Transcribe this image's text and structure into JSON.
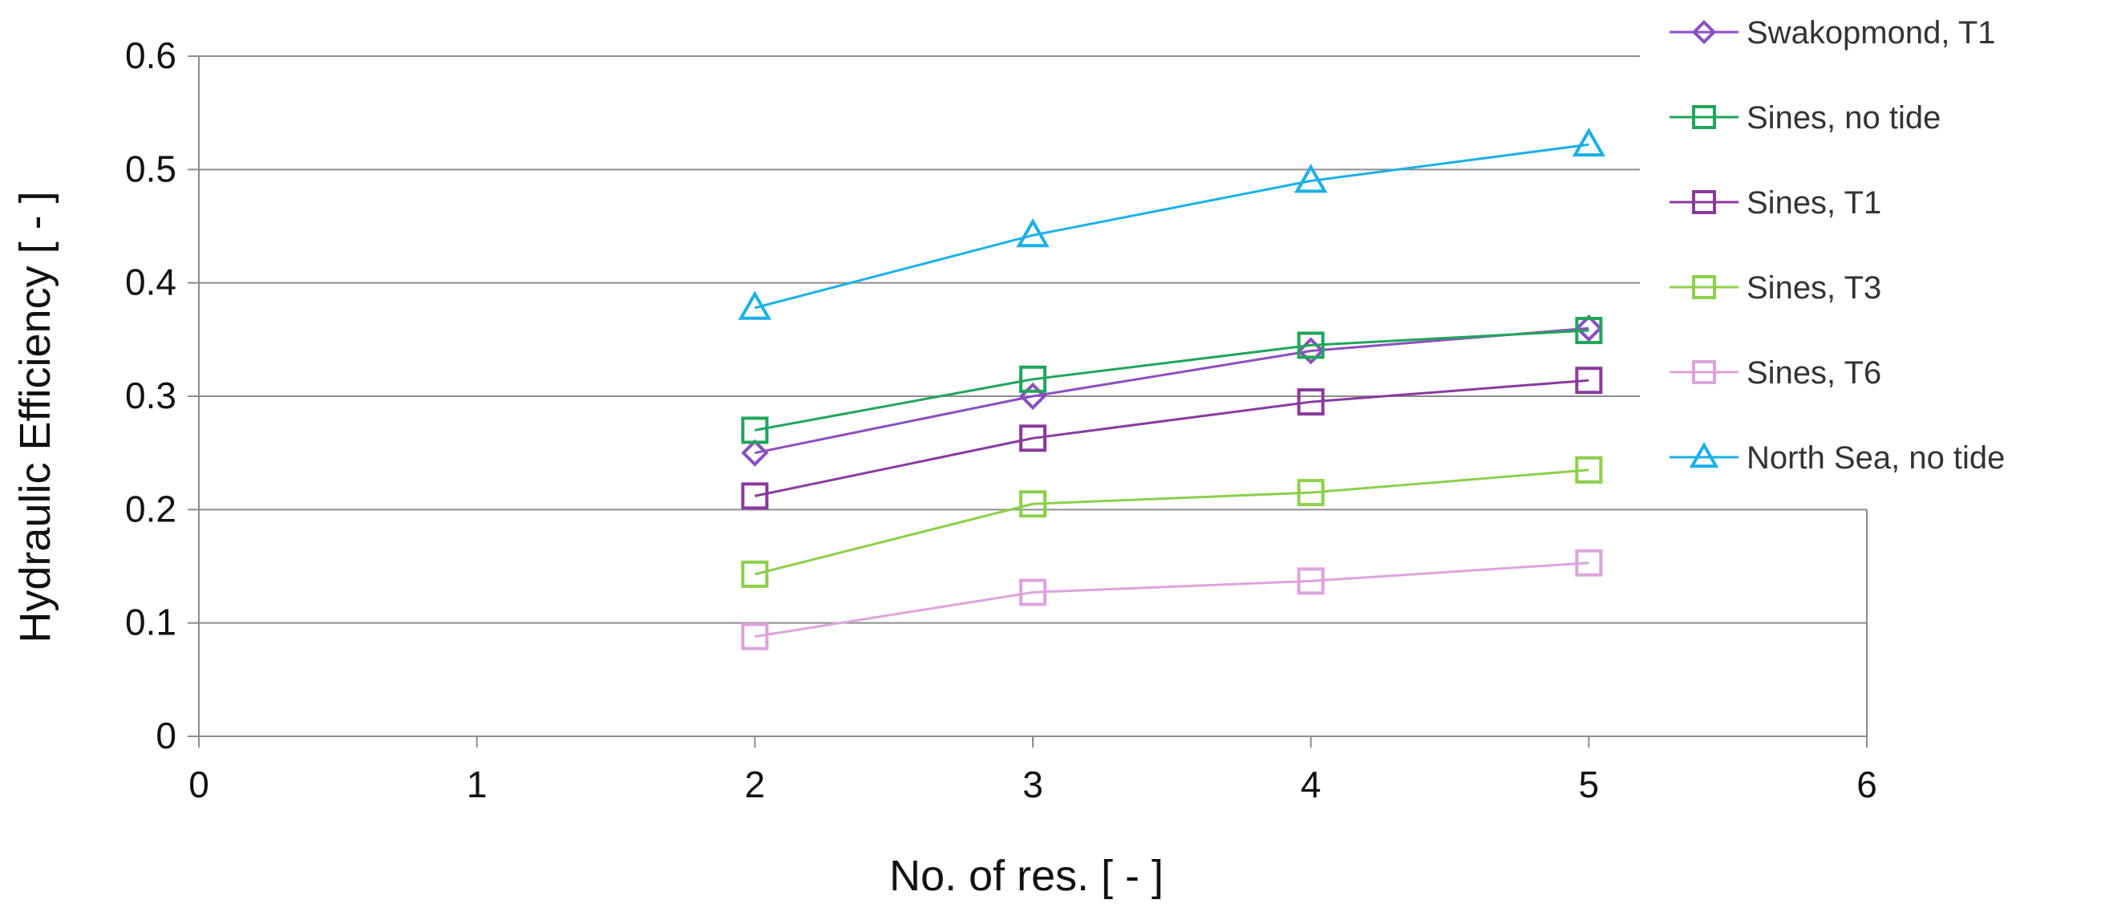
{
  "chart_data": {
    "type": "line",
    "xlabel": "No. of res. [ - ]",
    "ylabel": "Hydraulic Efficiency [ - ]",
    "xlim": [
      0,
      6
    ],
    "ylim": [
      0,
      0.6
    ],
    "x_ticks": [
      "0",
      "1",
      "2",
      "3",
      "4",
      "5",
      "6"
    ],
    "y_ticks": [
      "0",
      "0.1",
      "0.2",
      "0.3",
      "0.4",
      "0.5",
      "0.6"
    ],
    "grid": "horizontal",
    "legend": "right",
    "x": [
      2,
      3,
      4,
      5
    ],
    "series": [
      {
        "name": "Swakopmond, T1",
        "values": [
          0.25,
          0.3,
          0.34,
          0.36
        ],
        "color": "#8B4FC0",
        "marker": "diamond"
      },
      {
        "name": "Sines, no tide",
        "values": [
          0.27,
          0.315,
          0.345,
          0.358
        ],
        "color": "#1FA65A",
        "marker": "square"
      },
      {
        "name": "Sines, T1",
        "values": [
          0.212,
          0.263,
          0.295,
          0.314
        ],
        "color": "#8A3A9E",
        "marker": "square"
      },
      {
        "name": "Sines, T3",
        "values": [
          0.143,
          0.205,
          0.215,
          0.235
        ],
        "color": "#8BD04A",
        "marker": "square"
      },
      {
        "name": "Sines, T6",
        "values": [
          0.088,
          0.127,
          0.137,
          0.153
        ],
        "color": "#DDA3DD",
        "marker": "square"
      },
      {
        "name": "North Sea, no tide",
        "values": [
          0.378,
          0.442,
          0.49,
          0.522
        ],
        "color": "#1AB0E8",
        "marker": "triangle"
      }
    ]
  }
}
